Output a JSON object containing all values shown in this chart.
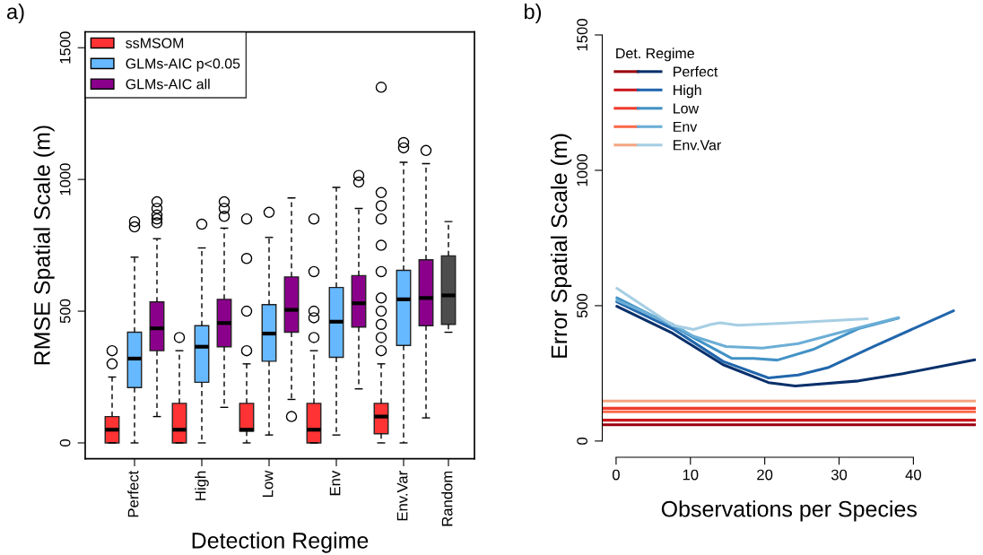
{
  "chart_data": [
    {
      "type": "box",
      "title": "a)",
      "xlabel": "Detection Regime",
      "ylabel": "RMSE Spatial Scale (m)",
      "categories": [
        null,
        "Perfect",
        null,
        null,
        "High",
        null,
        null,
        "Low",
        null,
        null,
        "Env",
        null,
        null,
        "Env.Var",
        null,
        "Random"
      ],
      "ylim": [
        -60,
        1560
      ],
      "yticks": [
        0,
        500,
        1000,
        1500
      ],
      "legend": "top left",
      "series": [
        {
          "name": "ssMSOM",
          "color": "#ff3333",
          "boxes": [
            {
              "low": 0,
              "q1": 0,
              "median": 50,
              "q3": 100,
              "high": 250,
              "outliers": [
                300,
                350
              ]
            },
            null,
            null,
            {
              "low": 0,
              "q1": 0,
              "median": 50,
              "q3": 150,
              "high": 350,
              "outliers": [
                400
              ]
            },
            null,
            null,
            {
              "low": 0,
              "q1": 45,
              "median": 50,
              "q3": 150,
              "high": 300,
              "outliers": [
                350,
                500,
                700,
                850
              ]
            },
            null,
            null,
            {
              "low": 0,
              "q1": 0,
              "median": 50,
              "q3": 150,
              "high": 350,
              "outliers": [
                400,
                475,
                500,
                650,
                850
              ]
            },
            null,
            null,
            {
              "low": 0,
              "q1": 35,
              "median": 100,
              "q3": 150,
              "high": 300,
              "outliers": [
                350,
                400,
                450,
                500,
                550,
                650,
                750,
                850,
                900,
                950,
                1350
              ]
            },
            null,
            null,
            null
          ]
        },
        {
          "name": "GLMs-AIC p<0.05",
          "color": "#66b8ff",
          "boxes": [
            null,
            {
              "low": 0,
              "q1": 210,
              "median": 320,
              "q3": 420,
              "high": 705,
              "outliers": [
                820,
                840
              ]
            },
            null,
            null,
            {
              "low": 0,
              "q1": 230,
              "median": 365,
              "q3": 445,
              "high": 740,
              "outliers": [
                830
              ]
            },
            null,
            null,
            {
              "low": 30,
              "q1": 310,
              "median": 415,
              "q3": 525,
              "high": 780,
              "outliers": [
                875
              ]
            },
            null,
            null,
            {
              "low": 30,
              "q1": 325,
              "median": 460,
              "q3": 590,
              "high": 970
            },
            null,
            null,
            {
              "low": 0,
              "q1": 370,
              "median": 545,
              "q3": 655,
              "high": 1065,
              "outliers": [
                1120,
                1140
              ]
            },
            null,
            null
          ]
        },
        {
          "name": "GLMs-AIC all",
          "color": "#8b008b",
          "boxes": [
            null,
            null,
            {
              "low": 100,
              "q1": 350,
              "median": 435,
              "q3": 535,
              "high": 775,
              "outliers": [
                835,
                850,
                865,
                890,
                915
              ]
            },
            null,
            null,
            {
              "low": 135,
              "q1": 365,
              "median": 455,
              "q3": 545,
              "high": 815,
              "outliers": [
                860,
                890,
                915
              ]
            },
            null,
            null,
            {
              "low": 165,
              "q1": 420,
              "median": 505,
              "q3": 630,
              "high": 930,
              "outliers": [
                100
              ]
            },
            null,
            null,
            {
              "low": 205,
              "q1": 440,
              "median": 530,
              "q3": 635,
              "high": 890,
              "outliers": [
                990,
                1015
              ]
            },
            null,
            null,
            {
              "low": 95,
              "q1": 445,
              "median": 550,
              "q3": 695,
              "high": 1060,
              "outliers": [
                1110
              ]
            },
            null
          ]
        },
        {
          "color": "#4d4d4d",
          "boxes": [
            null,
            null,
            null,
            null,
            null,
            null,
            null,
            null,
            null,
            null,
            null,
            null,
            null,
            null,
            null,
            {
              "low": 420,
              "q1": 450,
              "median": 560,
              "q3": 710,
              "high": 840
            }
          ]
        }
      ]
    },
    {
      "type": "line",
      "title": "b)",
      "xlabel": "Observations per Species",
      "ylabel": "Error Spatial Scale (m)",
      "legend_title": "Det. Regime",
      "xlim": [
        -1.86,
        48.4
      ],
      "xticks": [
        0,
        10,
        20,
        30,
        40
      ],
      "ylim": [
        -60,
        1500
      ],
      "yticks": [
        0,
        500,
        1000,
        1500
      ],
      "legend": "top left",
      "series": [
        {
          "name": "Perfect",
          "color": "#08306b",
          "x": [
            0.1,
            7.6,
            14.4,
            20.5,
            24.1,
            32.6,
            38.6,
            47.5,
            48.3
          ],
          "values": [
            498,
            398,
            282,
            216,
            203,
            222,
            249,
            296,
            300
          ]
        },
        {
          "name": "High",
          "color": "#2166ac",
          "x": [
            0.1,
            7.6,
            14.4,
            20.5,
            24.5,
            28.5,
            34.6,
            45.4
          ],
          "values": [
            514,
            415,
            294,
            233,
            244,
            271,
            349,
            481
          ]
        },
        {
          "name": "Low",
          "color": "#4292c6",
          "x": [
            0.1,
            7.6,
            10.8,
            15.6,
            18.5,
            21.7,
            26.5,
            32.6,
            38.0
          ],
          "values": [
            529,
            426,
            376,
            305,
            305,
            299,
            338,
            415,
            454
          ]
        },
        {
          "name": "Env",
          "color": "#6baed6",
          "x": [
            0.1,
            7.6,
            10.4,
            14.8,
            19.7,
            24.5,
            30.5,
            38.0
          ],
          "values": [
            520,
            431,
            387,
            349,
            343,
            360,
            404,
            456
          ]
        },
        {
          "name": "Env.Var",
          "color": "#a6cee3",
          "x": [
            0.1,
            7.6,
            10.4,
            12.8,
            14.0,
            16.4,
            22.5,
            33.8
          ],
          "values": [
            564,
            428,
            412,
            431,
            437,
            428,
            435,
            452
          ]
        },
        {
          "color": "#99000d",
          "x": [
            -1.86,
            48.4
          ],
          "values": [
            60,
            60
          ]
        },
        {
          "color": "#cb181d",
          "x": [
            -1.86,
            48.4
          ],
          "values": [
            77,
            77
          ]
        },
        {
          "color": "#ef3b2c",
          "x": [
            -1.86,
            48.4
          ],
          "values": [
            121,
            121
          ]
        },
        {
          "color": "#fb6a4a",
          "x": [
            -1.86,
            48.4
          ],
          "values": [
            108,
            108
          ]
        },
        {
          "color": "#f4a582",
          "x": [
            -1.86,
            48.4
          ],
          "values": [
            148,
            148
          ]
        }
      ]
    }
  ]
}
